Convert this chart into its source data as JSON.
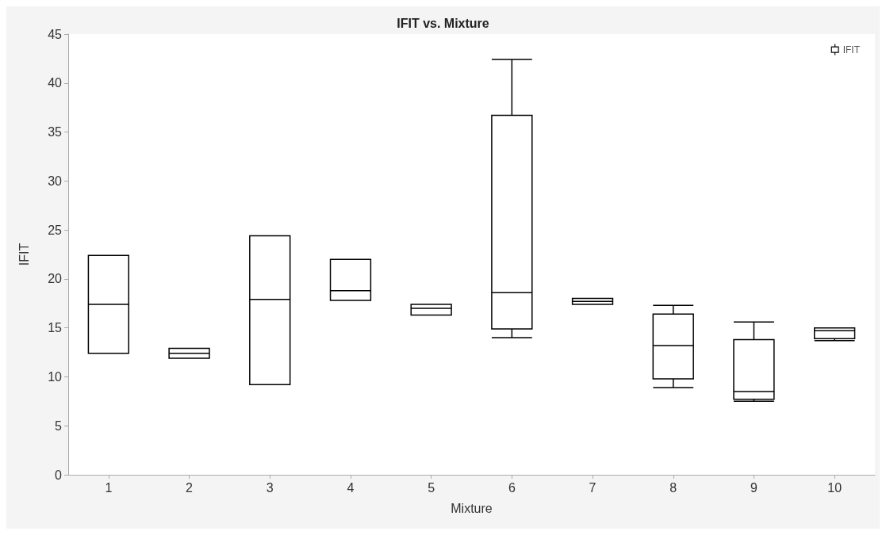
{
  "chart_data": {
    "type": "box",
    "title": "IFIT vs. Mixture",
    "xlabel": "Mixture",
    "ylabel": "IFIT",
    "categories": [
      "1",
      "2",
      "3",
      "4",
      "5",
      "6",
      "7",
      "8",
      "9",
      "10"
    ],
    "series": [
      {
        "name": "IFIT",
        "color": "#000000",
        "boxes": [
          {
            "low": 12.4,
            "q1": 12.4,
            "median": 17.4,
            "q3": 22.4,
            "high": 22.4
          },
          {
            "low": 11.9,
            "q1": 11.9,
            "median": 12.4,
            "q3": 12.9,
            "high": 12.9
          },
          {
            "low": 9.2,
            "q1": 9.2,
            "median": 17.9,
            "q3": 24.4,
            "high": 24.4
          },
          {
            "low": 17.8,
            "q1": 17.8,
            "median": 18.8,
            "q3": 22.0,
            "high": 22.0
          },
          {
            "low": 16.3,
            "q1": 16.3,
            "median": 17.0,
            "q3": 17.4,
            "high": 17.4
          },
          {
            "low": 14.0,
            "q1": 14.9,
            "median": 18.6,
            "q3": 36.7,
            "high": 42.4
          },
          {
            "low": 17.4,
            "q1": 17.4,
            "median": 17.7,
            "q3": 18.0,
            "high": 18.0
          },
          {
            "low": 8.9,
            "q1": 9.8,
            "median": 13.2,
            "q3": 16.4,
            "high": 17.3
          },
          {
            "low": 7.5,
            "q1": 7.7,
            "median": 8.5,
            "q3": 13.8,
            "high": 15.6
          },
          {
            "low": 13.7,
            "q1": 13.9,
            "median": 14.7,
            "q3": 15.0,
            "high": 15.0
          }
        ]
      }
    ],
    "ylim": [
      0,
      45
    ],
    "yticks": [
      0,
      5,
      10,
      15,
      20,
      25,
      30,
      35,
      40,
      45
    ],
    "grid": false,
    "legend": "top right"
  }
}
